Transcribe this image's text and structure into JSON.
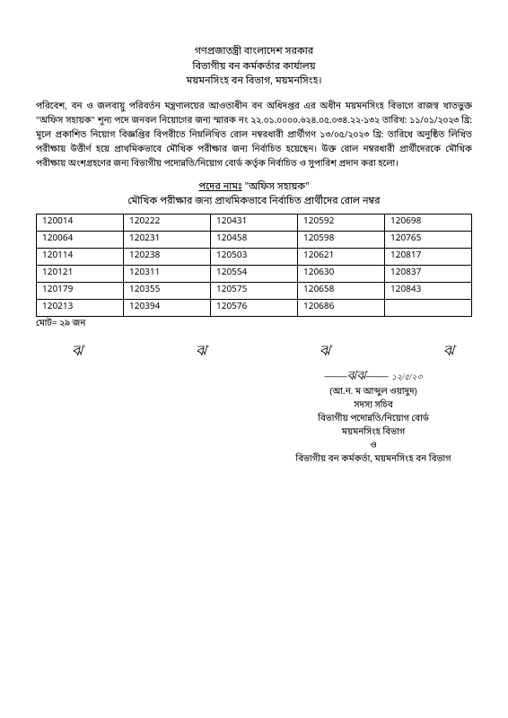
{
  "header": {
    "line1": "গণপ্রজাতন্ত্রী বাংলাদেশ সরকার",
    "line2": "বিভাগীয় বন কর্মকর্তার কার্যালয়",
    "line3": "ময়মনসিংহ বন বিভাগ, ময়মনসিংহ।"
  },
  "body": "পরিবেশ, বন ও জলবায়ু পরিবর্তন মন্ত্রণালয়ের আওতাধীন বন অধিদপ্তর এর অধীন ময়মনসিংহ বিভাগে রাজস্ব খাতভুক্ত \"অফিস সহায়ক\" শূন্য পদে জনবল নিয়োগের জন্য স্মারক নং ২২.০১.০০০০.৬২৪.০৫.০৩৪.২২-১৩২ তারিখ: ১১/০১/২০২৩ খ্রি: মূলে প্রকাশিত নিয়োগ বিজ্ঞপ্তির বিপরীতে নিম্নলিখিত রোল নম্বরধারী প্রার্থীগণ ১৩/০৫/২০২৩ খ্রি: তারিখে অনুষ্ঠিত লিখিত পরীক্ষায় উত্তীর্ণ হয়ে প্রাথমিকভাবে মৌখিক পরীক্ষার জন্য নির্বাচিত হয়েছেন। উক্ত রোল নম্বরধারী প্রার্থীদেরকে মৌখিক পরীক্ষায় অংশগ্রহণের জন্য বিভাগীয় পদোন্নতি/নিয়োগ বোর্ড কর্তৃক নির্বাচিত ও সুপারিশ প্রদান করা হলো।",
  "post_label": "পদের নামঃ",
  "post_name": "\"অফিস সহায়ক\"",
  "sub_title": "মৌখিক পরীক্ষার জন্য প্রাথমিকভাবে নির্বাচিত প্রার্থীদের রোল নম্বর",
  "table": {
    "rows": [
      [
        "120014",
        "120222",
        "120431",
        "120592",
        "120698"
      ],
      [
        "120064",
        "120231",
        "120458",
        "120598",
        "120765"
      ],
      [
        "120114",
        "120238",
        "120503",
        "120621",
        "120817"
      ],
      [
        "120121",
        "120311",
        "120554",
        "120630",
        "120837"
      ],
      [
        "120179",
        "120355",
        "120575",
        "120658",
        "120843"
      ],
      [
        "120213",
        "120394",
        "120576",
        "120686",
        ""
      ]
    ]
  },
  "total": "মোট= ২৯ জন",
  "sig_marks": [
    "ঝ",
    "ঝ",
    "ঝ",
    "ঝ"
  ],
  "signature": {
    "scribble": "——ঝঝ——",
    "date": "১২/৫/২৩",
    "name": "(আ.ন. ম আব্দুল ওয়াদুদ)",
    "title": "সদস্য সচিব",
    "line1": "বিভাগীয় পদোন্নতি/নিয়োগ বোর্ড",
    "line2": "ময়মনসিংহ বিভাগ",
    "line3": "ও",
    "line4": "বিভাগীয় বন কর্মকর্তা, ময়মনসিংহ বন বিভাগ"
  }
}
